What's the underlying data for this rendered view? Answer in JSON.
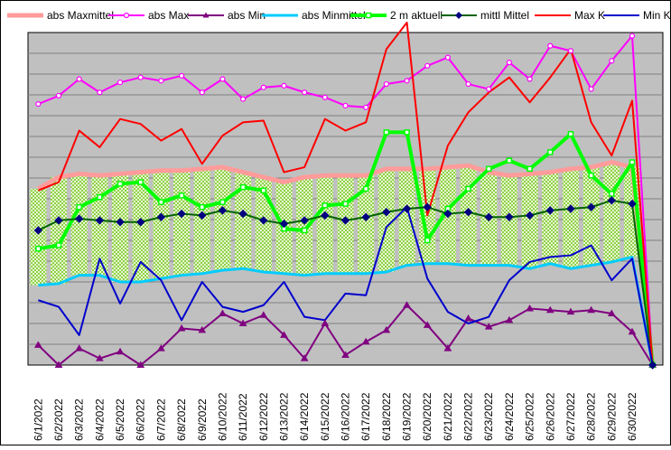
{
  "chart_data": {
    "type": "line",
    "title": "",
    "xlabel": "",
    "ylabel": "",
    "grid": true,
    "legend_position": "top",
    "ylim": [
      0,
      100
    ],
    "x": [
      "6/1/2022",
      "6/2/2022",
      "6/3/2022",
      "6/4/2022",
      "6/5/2022",
      "6/6/2022",
      "6/7/2022",
      "6/8/2022",
      "6/9/2022",
      "6/10/2022",
      "6/11/2022",
      "6/12/2022",
      "6/13/2022",
      "6/14/2022",
      "6/15/2022",
      "6/16/2022",
      "6/17/2022",
      "6/18/2022",
      "6/19/2022",
      "6/20/2022",
      "6/21/2022",
      "6/22/2022",
      "6/23/2022",
      "6/24/2022",
      "6/25/2022",
      "6/26/2022",
      "6/27/2022",
      "6/28/2022",
      "6/29/2022",
      "6/30/2022",
      ""
    ],
    "series": [
      {
        "name": "abs Maxmittel",
        "color": "#ff9b9b",
        "marker": "none",
        "width": 5,
        "values": [
          53,
          56.5,
          57.5,
          57,
          57.5,
          58,
          58.5,
          58.5,
          59,
          59.5,
          58,
          56.5,
          55,
          56.5,
          57,
          57,
          57,
          59,
          59,
          59,
          59.5,
          60,
          58,
          57,
          57.5,
          58,
          59,
          59.5,
          61,
          59.5,
          0
        ]
      },
      {
        "name": "abs Max",
        "color": "#ff00ff",
        "marker": "circle",
        "width": 2,
        "values": [
          78.5,
          81,
          86,
          82,
          85,
          86.5,
          85.5,
          87,
          82,
          86,
          80,
          83.5,
          84,
          82,
          80.5,
          78,
          77.5,
          84.5,
          85.5,
          90,
          92.5,
          84.5,
          83,
          91,
          86,
          96,
          94.5,
          83,
          91.5,
          99,
          0
        ]
      },
      {
        "name": "abs Min",
        "color": "#800080",
        "marker": "triangle",
        "width": 2,
        "values": [
          6,
          0,
          5,
          2,
          4,
          0,
          5,
          11,
          10.5,
          15.5,
          12.5,
          15,
          9,
          2,
          12.5,
          3,
          7,
          10.5,
          18,
          12,
          5,
          14,
          11.5,
          13.5,
          17,
          16.5,
          16,
          16.5,
          15.5,
          10,
          0
        ]
      },
      {
        "name": "abs Minmittel",
        "color": "#00ccff",
        "marker": "none",
        "width": 3,
        "values": [
          24,
          24.5,
          27,
          27,
          25,
          25,
          26,
          27,
          27.5,
          28.5,
          29,
          28,
          27.5,
          27,
          27.5,
          27.5,
          27.5,
          28,
          30,
          30.5,
          30.5,
          30,
          30,
          30,
          29,
          30.5,
          29,
          30,
          31,
          32.5,
          0
        ]
      },
      {
        "name": "2 m aktuell",
        "color": "#00ff00",
        "marker": "square",
        "width": 4,
        "values": [
          35,
          36,
          47.5,
          50.5,
          54.5,
          55,
          49,
          51,
          47.5,
          49,
          53.5,
          52.5,
          41,
          40.5,
          48,
          48.5,
          53,
          70,
          70,
          37.5,
          47,
          53,
          59,
          61.5,
          59,
          64,
          69.5,
          57,
          51.5,
          61,
          0
        ]
      },
      {
        "name": "mittl Mittel",
        "color": "#006400",
        "marker": "diamond",
        "width": 2,
        "values": [
          40.5,
          43.5,
          44,
          43.5,
          43,
          43,
          44.5,
          45.5,
          45,
          46.5,
          45.5,
          43.5,
          42.5,
          43.5,
          45,
          43.5,
          44.5,
          46,
          47,
          47.5,
          45.5,
          46,
          44.5,
          44.5,
          45,
          46.5,
          47,
          47.5,
          49.5,
          48.5,
          0
        ]
      },
      {
        "name": "Max K",
        "color": "#ff0000",
        "marker": "none",
        "width": 2,
        "values": [
          52.5,
          55,
          70.5,
          65.5,
          74,
          72.5,
          67.5,
          71,
          60.5,
          69,
          73,
          73.5,
          58,
          59.5,
          74,
          70.5,
          73,
          95,
          103,
          45,
          66,
          76,
          82,
          86.5,
          79,
          86.5,
          95,
          73,
          63,
          79.5,
          0
        ]
      },
      {
        "name": "Min K",
        "color": "#0000cc",
        "marker": "none",
        "width": 2,
        "values": [
          19.5,
          17.5,
          9,
          32,
          18.5,
          31,
          25.5,
          13.5,
          25,
          17.5,
          16,
          18,
          25,
          14.5,
          13.5,
          21.5,
          21,
          41.5,
          47.5,
          26,
          16,
          12.5,
          14.5,
          25.5,
          31,
          32.5,
          33,
          36,
          25.5,
          32,
          0
        ]
      }
    ]
  }
}
